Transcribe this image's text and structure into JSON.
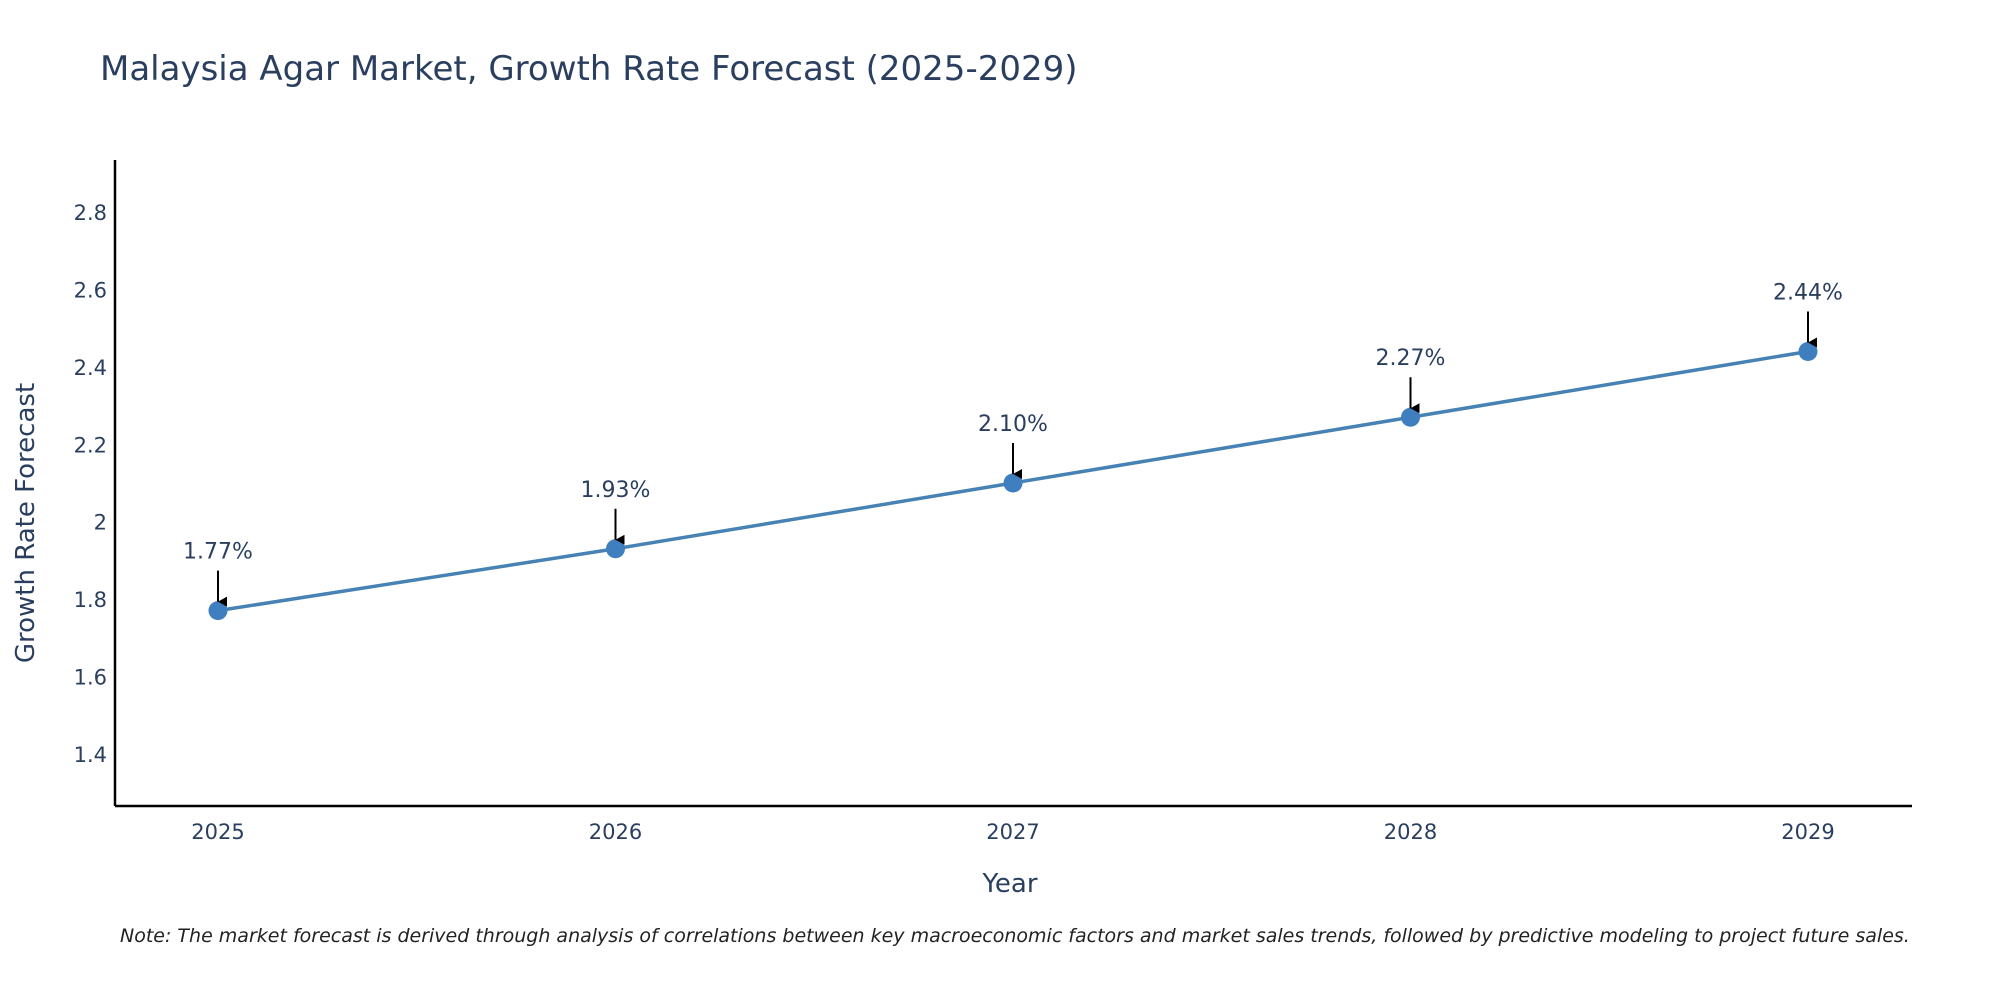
{
  "chart_data": {
    "type": "line",
    "title": "Malaysia Agar Market, Growth Rate Forecast (2025-2029)",
    "xlabel": "Year",
    "ylabel": "Growth Rate Forecast",
    "categories": [
      "2025",
      "2026",
      "2027",
      "2028",
      "2029"
    ],
    "series": [
      {
        "name": "Growth Rate Forecast",
        "values": [
          1.77,
          1.93,
          2.1,
          2.27,
          2.44
        ],
        "labels": [
          "1.77%",
          "1.93%",
          "2.10%",
          "2.27%",
          "2.44%"
        ]
      }
    ],
    "ylim": [
      1.265,
      2.935
    ],
    "yticks": [
      1.4,
      1.6,
      1.8,
      2.0,
      2.2,
      2.4,
      2.6,
      2.8
    ],
    "ytick_labels": [
      "1.4",
      "1.6",
      "1.8",
      "2",
      "2.2",
      "2.4",
      "2.6",
      "2.8"
    ],
    "grid": false,
    "line_color": "#4682b4",
    "marker_color": "#3f7fbf",
    "annotation_arrows": true
  },
  "note": "Note: The market forecast is derived through analysis of correlations between key macroeconomic factors and market sales trends, followed by predictive modeling to project future sales."
}
